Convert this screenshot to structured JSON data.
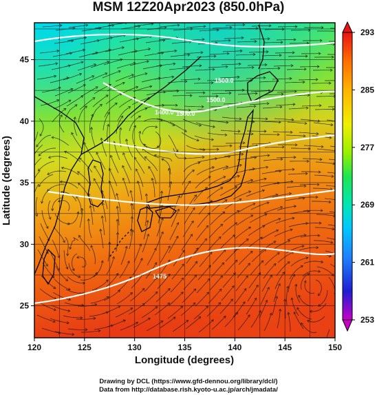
{
  "title": "MSM 12Z20Apr2023 (850.0hPa)",
  "map": {
    "lon_range": [
      120,
      150
    ],
    "lat_range": [
      22.4,
      48
    ],
    "x_ticks": [
      "120",
      "125",
      "130",
      "135",
      "140",
      "145",
      "150"
    ],
    "y_ticks": [
      "25",
      "30",
      "35",
      "40",
      "45"
    ],
    "xlabel": "Longitude (degrees)",
    "ylabel": "Latitude  (degrees)",
    "contour_labels": [
      "1500.0",
      "1500.0",
      "1400.0",
      "1500.0",
      "1475"
    ]
  },
  "colorbar": {
    "min": 253,
    "max": 293,
    "tick_labels": [
      "293",
      "285",
      "277",
      "269",
      "261",
      "253"
    ],
    "colors": [
      "#c800c8",
      "#1e1ed2",
      "#1e82ff",
      "#00c8ff",
      "#00e6b4",
      "#1ee650",
      "#96f000",
      "#f0f000",
      "#ffb400",
      "#ff6e00",
      "#e61e1e"
    ]
  },
  "credits": {
    "line1": "Drawing by DCL (https://www.gfd-dennou.org/library/dcl/)",
    "line2": "Data from http://database.rish.kyoto-u.ac.jp/arch/jmadata/"
  }
}
